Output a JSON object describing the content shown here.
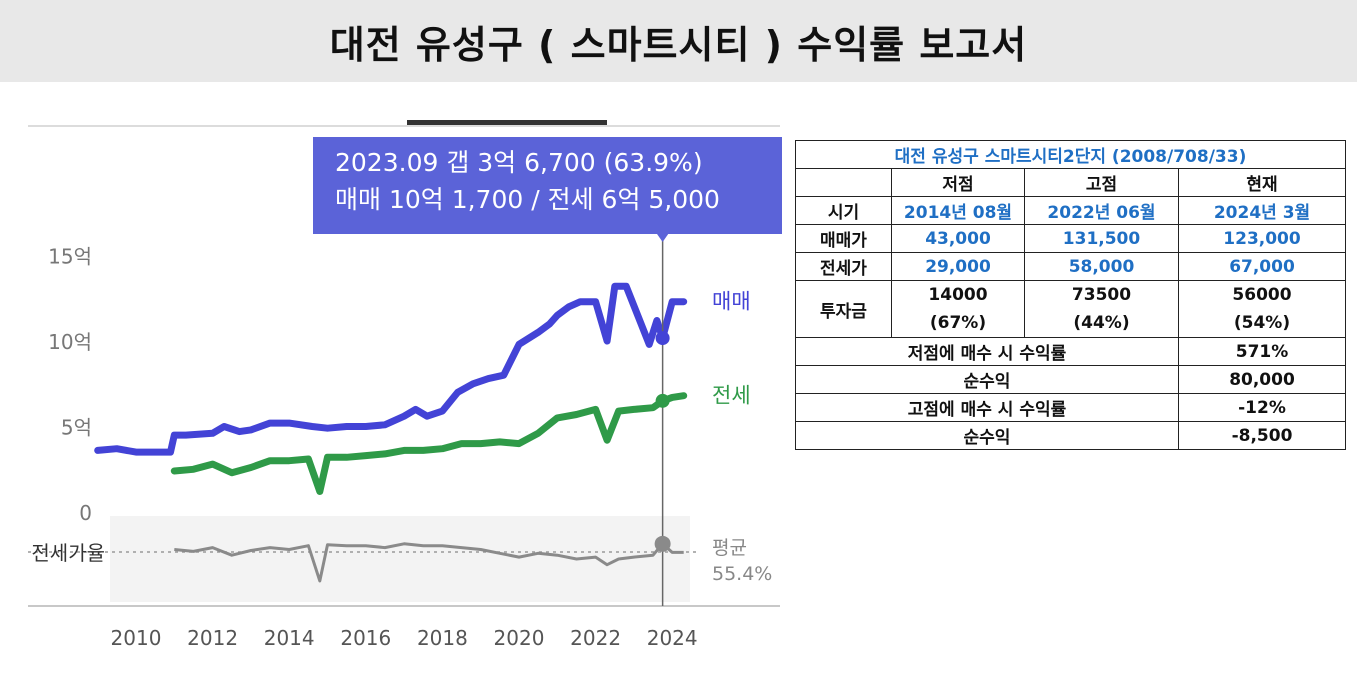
{
  "title": "대전 유성구 ( 스마트시티 ) 수익률 보고서",
  "tooltip": {
    "line1": "2023.09  갭 3억 6,700 (63.9%)",
    "line2": "매매 10억 1,700 / 전세 6억 5,000"
  },
  "chart_data": {
    "type": "line",
    "x_ticks": [
      "2010",
      "2012",
      "2014",
      "2016",
      "2018",
      "2020",
      "2022",
      "2024"
    ],
    "y_ticks": [
      "15억",
      "10억",
      "5억",
      "0"
    ],
    "ylim": [
      0,
      15
    ],
    "xlim": [
      2009,
      2025
    ],
    "series": [
      {
        "name": "매매",
        "color": "#4343d6",
        "x": [
          2009.0,
          2009.5,
          2010.0,
          2010.5,
          2010.9,
          2011.0,
          2011.3,
          2012.0,
          2012.3,
          2012.7,
          2013.0,
          2013.5,
          2014.0,
          2014.6,
          2015.0,
          2015.5,
          2016.0,
          2016.5,
          2017.0,
          2017.3,
          2017.6,
          2018.0,
          2018.4,
          2018.8,
          2019.2,
          2019.6,
          2020.0,
          2020.5,
          2020.8,
          2021.0,
          2021.3,
          2021.6,
          2022.0,
          2022.3,
          2022.5,
          2022.8,
          2023.1,
          2023.4,
          2023.6,
          2023.75,
          2024.0,
          2024.3
        ],
        "values": [
          3.6,
          3.7,
          3.5,
          3.5,
          3.5,
          4.5,
          4.5,
          4.6,
          5.0,
          4.7,
          4.8,
          5.2,
          5.2,
          5.0,
          4.9,
          5.0,
          5.0,
          5.1,
          5.6,
          6.0,
          5.6,
          5.9,
          7.0,
          7.5,
          7.8,
          8.0,
          9.8,
          10.5,
          11.0,
          11.5,
          12.0,
          12.3,
          12.3,
          10.0,
          13.2,
          13.2,
          11.5,
          9.8,
          11.2,
          10.17,
          12.3,
          12.3
        ]
      },
      {
        "name": "전세",
        "color": "#2f9a48",
        "x": [
          2011.0,
          2011.5,
          2012.0,
          2012.5,
          2013.0,
          2013.5,
          2014.0,
          2014.5,
          2014.8,
          2015.0,
          2015.5,
          2016.0,
          2016.5,
          2017.0,
          2017.5,
          2018.0,
          2018.5,
          2019.0,
          2019.5,
          2020.0,
          2020.5,
          2021.0,
          2021.5,
          2022.0,
          2022.3,
          2022.6,
          2023.0,
          2023.5,
          2023.75,
          2024.0,
          2024.3
        ],
        "values": [
          2.4,
          2.5,
          2.8,
          2.3,
          2.6,
          3.0,
          3.0,
          3.1,
          1.2,
          3.2,
          3.2,
          3.3,
          3.4,
          3.6,
          3.6,
          3.7,
          4.0,
          4.0,
          4.1,
          4.0,
          4.6,
          5.5,
          5.7,
          6.0,
          4.2,
          5.9,
          6.0,
          6.1,
          6.5,
          6.7,
          6.8
        ]
      }
    ],
    "ratio_series": {
      "name": "전세가율",
      "avg_label": "평균",
      "avg_value_text": "55.4%",
      "x": [
        2011.0,
        2011.5,
        2012.0,
        2012.5,
        2013.0,
        2013.5,
        2014.0,
        2014.5,
        2014.8,
        2015.0,
        2015.5,
        2016.0,
        2016.5,
        2017.0,
        2017.5,
        2018.0,
        2018.5,
        2019.0,
        2019.5,
        2020.0,
        2020.5,
        2021.0,
        2021.5,
        2022.0,
        2022.3,
        2022.6,
        2023.0,
        2023.5,
        2023.75,
        2024.0,
        2024.3
      ],
      "values": [
        58,
        56,
        60,
        52,
        57,
        60,
        58,
        62,
        25,
        63,
        62,
        62,
        60,
        64,
        62,
        62,
        60,
        58,
        54,
        50,
        54,
        52,
        48,
        50,
        42,
        48,
        50,
        52,
        64,
        55,
        55
      ]
    },
    "cursor_x": 2023.75
  },
  "table": {
    "header": "대전 유성구 스마트시티2단지 (2008/708/33)",
    "columns": [
      "",
      "저점",
      "고점",
      "현재"
    ],
    "rows": [
      {
        "label": "시기",
        "values": [
          "2014년 08월",
          "2022년 06월",
          "2024년 3월"
        ]
      },
      {
        "label": "매매가",
        "values": [
          "43,000",
          "131,500",
          "123,000"
        ]
      },
      {
        "label": "전세가",
        "values": [
          "29,000",
          "58,000",
          "67,000"
        ]
      }
    ],
    "invest": {
      "label": "투자금",
      "values": [
        "14000",
        "73500",
        "56000"
      ],
      "pct": [
        "(67%)",
        "(44%)",
        "(54%)"
      ]
    },
    "summary": [
      {
        "label": "저점에 매수 시 수익률",
        "value": "571%"
      },
      {
        "label": "순수익",
        "value": "80,000"
      },
      {
        "label": "고점에 매수 시 수익률",
        "value": "-12%"
      },
      {
        "label": "순수익",
        "value": "-8,500"
      }
    ]
  }
}
